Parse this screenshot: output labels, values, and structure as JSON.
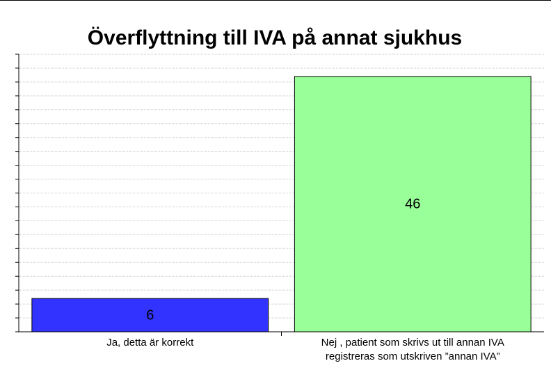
{
  "chart_data": {
    "type": "bar",
    "title": "Överflyttning till IVA på annat sjukhus",
    "categories": [
      "Ja, detta är korrekt",
      "Nej , patient som skrivs ut till annan IVA\nregistreras som utskriven ”annan IVA”"
    ],
    "values": [
      6,
      46
    ],
    "colors": [
      "#3333ff",
      "#99ff99"
    ],
    "ylim": [
      0,
      50
    ],
    "yticks": [
      0,
      2.5,
      5,
      7.5,
      10,
      12.5,
      15,
      17.5,
      20,
      22.5,
      25,
      27.5,
      30,
      32.5,
      35,
      37.5,
      40,
      42.5,
      45,
      47.5,
      50
    ],
    "grid": true
  }
}
